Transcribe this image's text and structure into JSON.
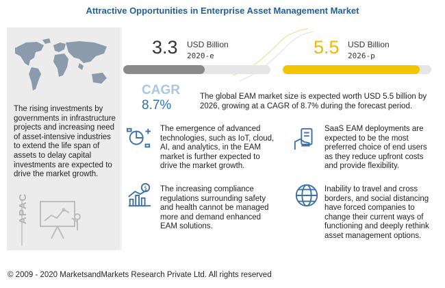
{
  "title": "Attractive Opportunities in Enterprise Asset Management Market",
  "intro_text": "The rising investments by governments in infrastructure projects and increasing need of asset-intensive industries to extend the life span of assets to delay capital investments are expected to drive the market growth.",
  "region_label": "APAC",
  "colors": {
    "title": "#1f5f9e",
    "bar_2020": "#8a8a8a",
    "bar_2026": "#f5c400",
    "cagr_value": "#2e6fb3",
    "icon": "#3d6fa3"
  },
  "chart_data": {
    "type": "bar",
    "categories": [
      "2020-e",
      "2026-p"
    ],
    "values": [
      3.3,
      5.5
    ],
    "value_labels": [
      "3.3",
      "5.5"
    ],
    "unit": "USD Billion"
  },
  "cagr": {
    "label": "CAGR",
    "value": "8.7%"
  },
  "summary_text": "The global EAM market size is expected worth USD 5.5 billion by 2026, growing at a CAGR of 8.7% during the forecast period.",
  "highlights": [
    {
      "icon": "technology-analytics-icon",
      "text": "The emergence of advanced technologies, such as IoT, cloud, AI, and analytics, in the EAM market is further expected to drive the market growth."
    },
    {
      "icon": "saas-hand-device-icon",
      "text": "SaaS EAM deployments are expected to be the most preferred choice of end users as they reduce upfront costs and provide flexibility."
    },
    {
      "icon": "compliance-growth-icon",
      "text": "The increasing compliance regulations surrounding safety and health cannot be managed more and demand enhanced EAM solutions."
    },
    {
      "icon": "globe-travel-icon",
      "text": "Inability to travel and cross borders, and social distancing have forced companies to change their current ways of functioning and deeply rethink asset management options."
    }
  ],
  "footer": "© 2009 - 2020 MarketsandMarkets Research Private Ltd. All rights reserved"
}
